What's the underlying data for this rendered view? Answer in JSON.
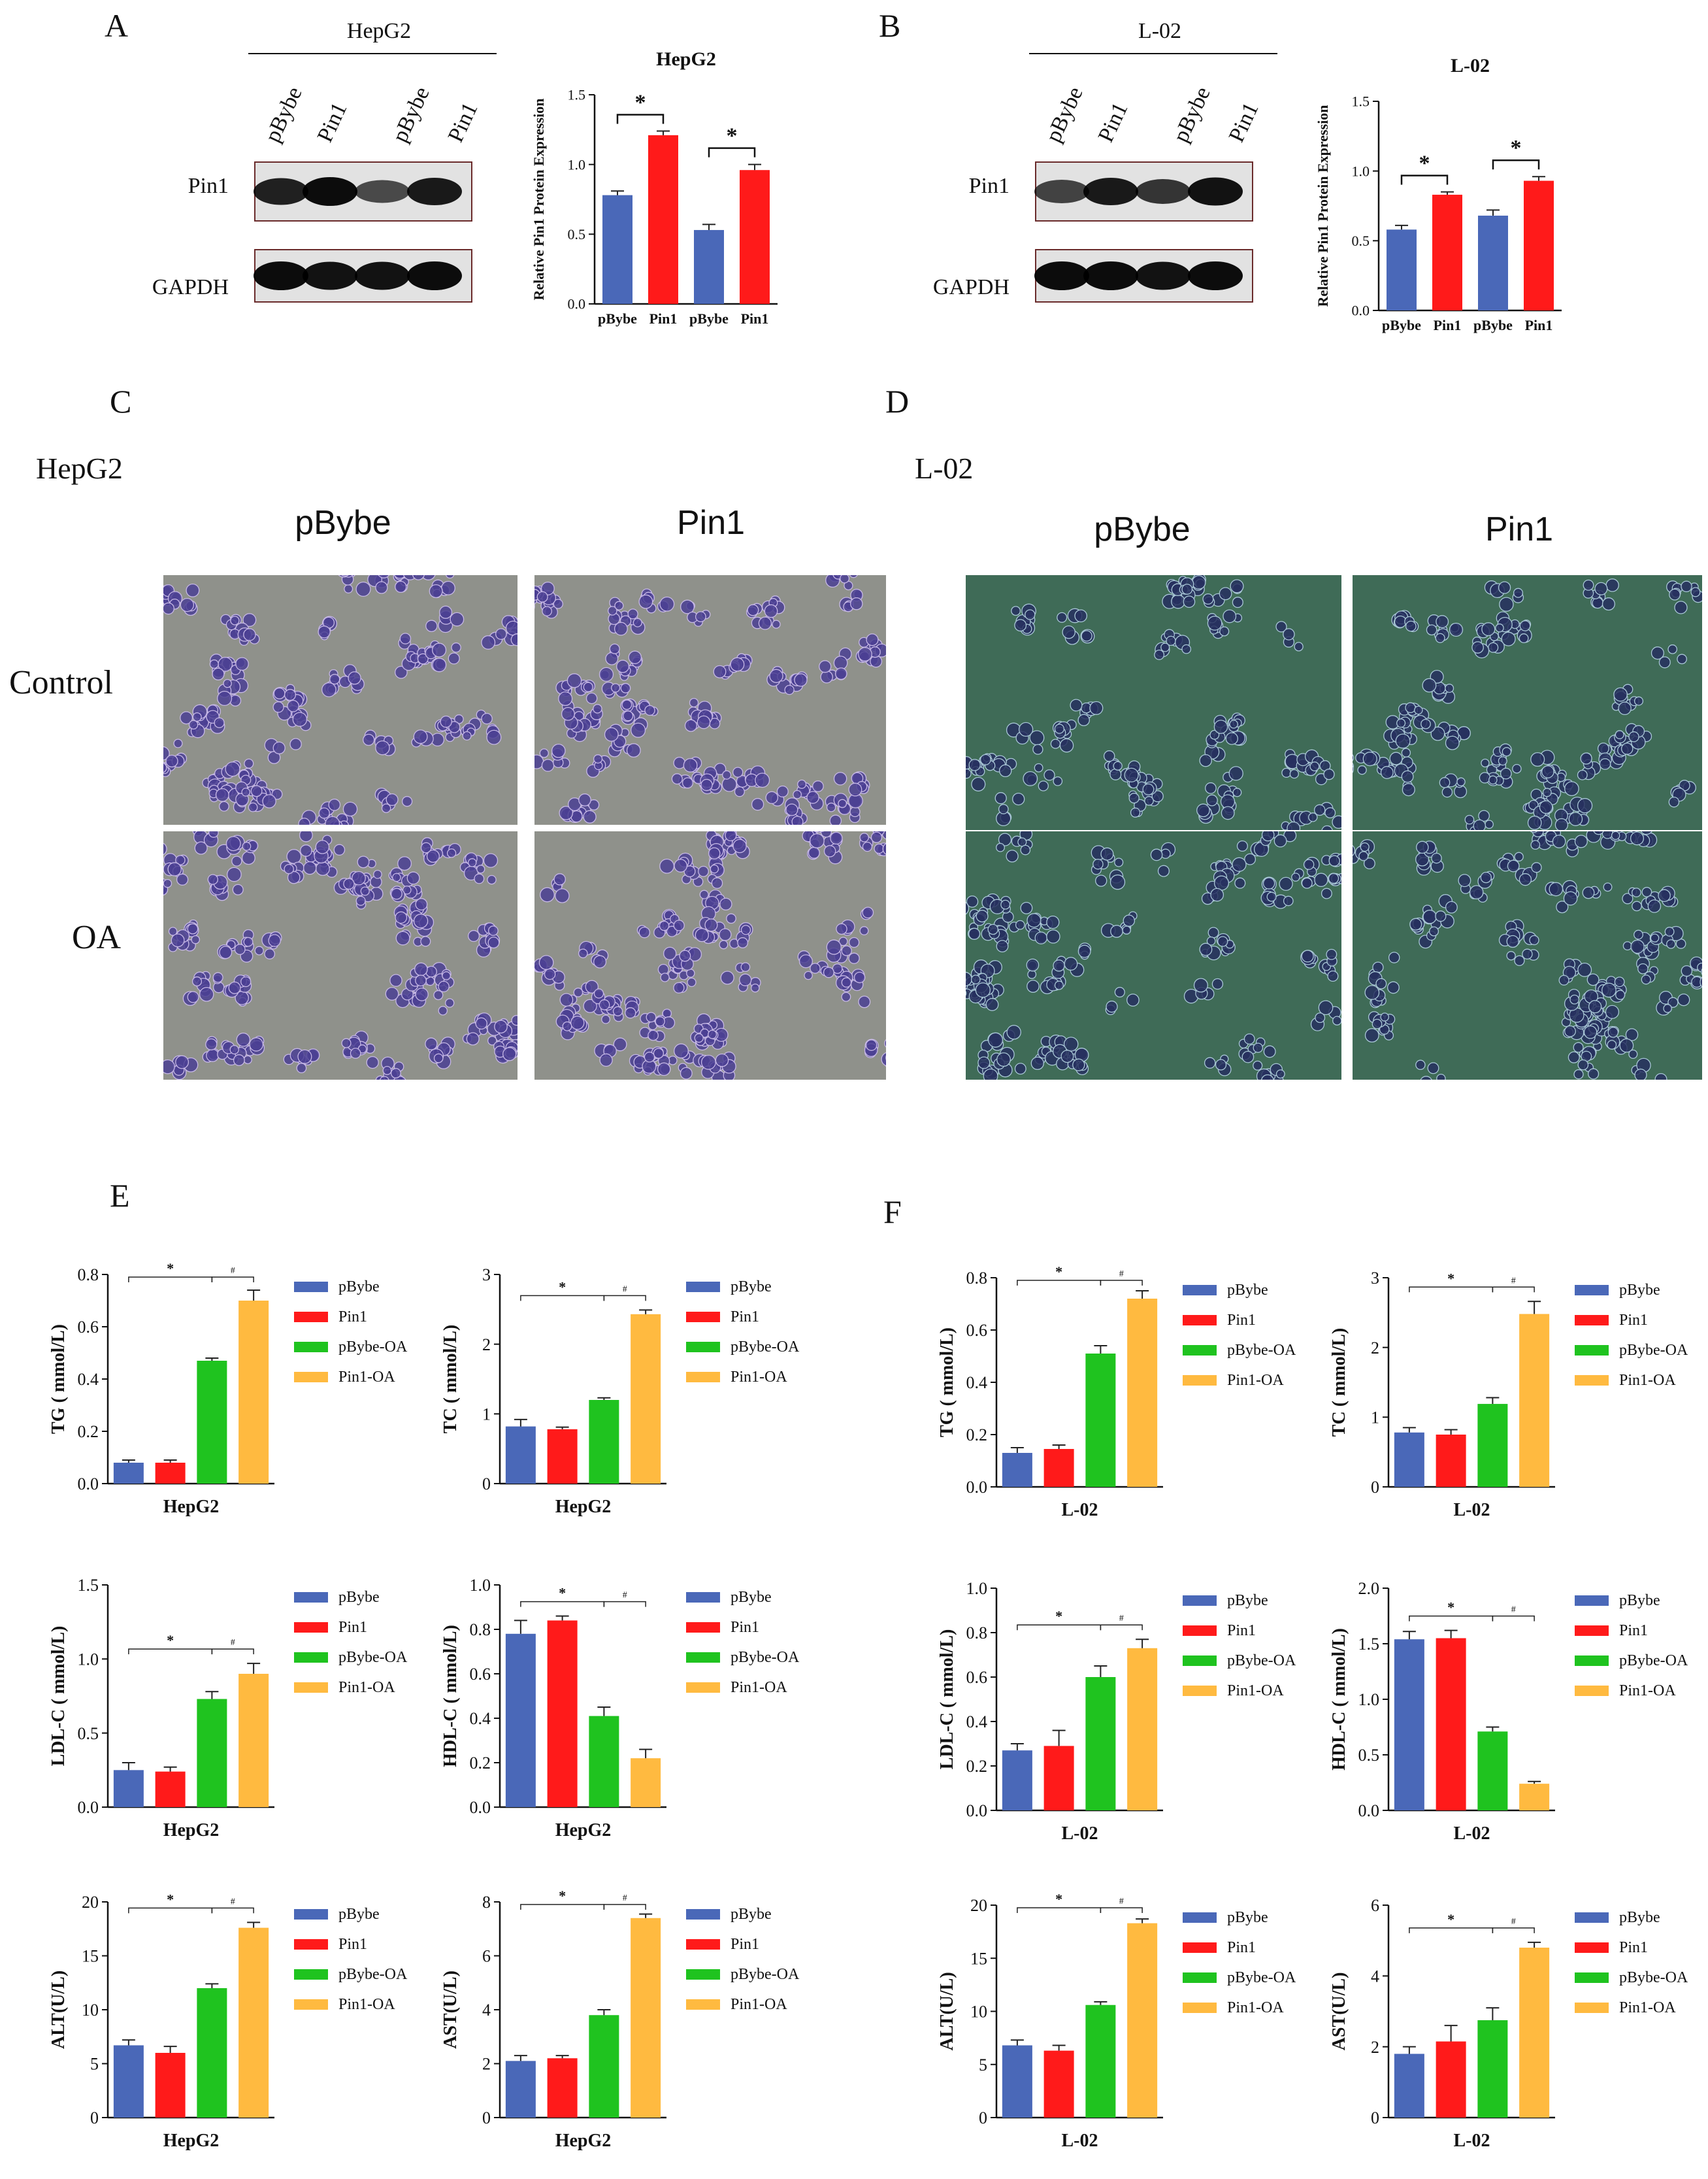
{
  "panels": {
    "A": "A",
    "B": "B",
    "C": "C",
    "D": "D",
    "E": "E",
    "F": "F"
  },
  "colors": {
    "pBybe": "#4a68b8",
    "Pin1": "#ff1a1a",
    "pBybe-OA": "#1fc31f",
    "Pin1-OA": "#ffba40",
    "hepg2_bg": "#8f918b",
    "l02_bg": "#3f6b57"
  },
  "blots": [
    {
      "cell_line": "HepG2",
      "lanes": [
        "pBybe",
        "Pin1",
        "pBybe",
        "Pin1"
      ],
      "rows": [
        "Pin1",
        "GAPDH"
      ],
      "pin1_intensity": [
        0.85,
        1.0,
        0.55,
        0.9
      ],
      "gapdh_intensity": [
        1.0,
        0.95,
        0.95,
        1.0
      ]
    },
    {
      "cell_line": "L-02",
      "lanes": [
        "pBybe",
        "Pin1",
        "pBybe",
        "Pin1"
      ],
      "rows": [
        "Pin1",
        "GAPDH"
      ],
      "pin1_intensity": [
        0.6,
        0.9,
        0.7,
        0.95
      ],
      "gapdh_intensity": [
        1.0,
        1.0,
        0.95,
        1.0
      ]
    }
  ],
  "micrographs": {
    "HepG2": {
      "title": "HepG2",
      "cols": [
        "pBybe",
        "Pin1"
      ],
      "rows": [
        "Control",
        "OA"
      ]
    },
    "L-02": {
      "title": "L-02",
      "cols": [
        "pBybe",
        "Pin1"
      ]
    }
  },
  "legend": [
    "pBybe",
    "Pin1",
    "pBybe-OA",
    "Pin1-OA"
  ],
  "chart_data": [
    {
      "id": "A-bar",
      "type": "bar",
      "title": "HepG2",
      "ylabel": "Relative Pin1 Protein Expression",
      "xlabel": "",
      "categories": [
        "pBybe",
        "Pin1",
        "pBybe",
        "Pin1"
      ],
      "values": [
        0.78,
        1.21,
        0.53,
        0.96
      ],
      "errors": [
        0.03,
        0.03,
        0.04,
        0.04
      ],
      "colors": [
        "#4a68b8",
        "#ff1a1a",
        "#4a68b8",
        "#ff1a1a"
      ],
      "ylim": [
        0,
        1.5
      ],
      "ticks": [
        "0.0",
        "0.5",
        "1.0",
        "1.5"
      ],
      "sig": [
        {
          "from": 0,
          "to": 1,
          "mark": "*"
        },
        {
          "from": 2,
          "to": 3,
          "mark": "*"
        }
      ]
    },
    {
      "id": "B-bar",
      "type": "bar",
      "title": "L-02",
      "ylabel": "Relative Pin1 Protein Expression",
      "xlabel": "",
      "categories": [
        "pBybe",
        "Pin1",
        "pBybe",
        "Pin1"
      ],
      "values": [
        0.58,
        0.83,
        0.68,
        0.93
      ],
      "errors": [
        0.03,
        0.02,
        0.04,
        0.03
      ],
      "colors": [
        "#4a68b8",
        "#ff1a1a",
        "#4a68b8",
        "#ff1a1a"
      ],
      "ylim": [
        0,
        1.5
      ],
      "ticks": [
        "0.0",
        "0.5",
        "1.0",
        "1.5"
      ],
      "sig": [
        {
          "from": 0,
          "to": 1,
          "mark": "*"
        },
        {
          "from": 2,
          "to": 3,
          "mark": "*"
        }
      ]
    },
    {
      "id": "E-TG",
      "type": "bar",
      "title": "",
      "xlabel": "HepG2",
      "ylabel": "TG ( mmol/L)",
      "categories": [
        "pBybe",
        "Pin1",
        "pBybe-OA",
        "Pin1-OA"
      ],
      "values": [
        0.08,
        0.08,
        0.47,
        0.7
      ],
      "errors": [
        0.01,
        0.01,
        0.01,
        0.04
      ],
      "ylim": [
        0,
        0.8
      ],
      "ticks": [
        "0.0",
        "0.2",
        "0.4",
        "0.6",
        "0.8"
      ]
    },
    {
      "id": "E-TC",
      "type": "bar",
      "title": "",
      "xlabel": "HepG2",
      "ylabel": "TC ( mmol/L)",
      "categories": [
        "pBybe",
        "Pin1",
        "pBybe-OA",
        "Pin1-OA"
      ],
      "values": [
        0.82,
        0.78,
        1.2,
        2.43
      ],
      "errors": [
        0.1,
        0.03,
        0.03,
        0.06
      ],
      "ylim": [
        0,
        3
      ],
      "ticks": [
        "0",
        "1",
        "2",
        "3"
      ]
    },
    {
      "id": "E-LDL",
      "type": "bar",
      "title": "",
      "xlabel": "HepG2",
      "ylabel": "LDL-C ( mmol/L)",
      "categories": [
        "pBybe",
        "Pin1",
        "pBybe-OA",
        "Pin1-OA"
      ],
      "values": [
        0.25,
        0.24,
        0.73,
        0.9
      ],
      "errors": [
        0.05,
        0.03,
        0.05,
        0.07
      ],
      "ylim": [
        0,
        1.5
      ],
      "ticks": [
        "0.0",
        "0.5",
        "1.0",
        "1.5"
      ]
    },
    {
      "id": "E-HDL",
      "type": "bar",
      "title": "",
      "xlabel": "HepG2",
      "ylabel": "HDL-C ( mmol/L)",
      "categories": [
        "pBybe",
        "Pin1",
        "pBybe-OA",
        "Pin1-OA"
      ],
      "values": [
        0.78,
        0.84,
        0.41,
        0.22
      ],
      "errors": [
        0.06,
        0.02,
        0.04,
        0.04
      ],
      "ylim": [
        0,
        1.0
      ],
      "ticks": [
        "0.0",
        "0.2",
        "0.4",
        "0.6",
        "0.8",
        "1.0"
      ]
    },
    {
      "id": "E-ALT",
      "type": "bar",
      "title": "",
      "xlabel": "HepG2",
      "ylabel": "ALT(U/L)",
      "categories": [
        "pBybe",
        "Pin1",
        "pBybe-OA",
        "Pin1-OA"
      ],
      "values": [
        6.7,
        6.0,
        12.0,
        17.6
      ],
      "errors": [
        0.5,
        0.6,
        0.4,
        0.5
      ],
      "ylim": [
        0,
        20
      ],
      "ticks": [
        "0",
        "5",
        "10",
        "15",
        "20"
      ]
    },
    {
      "id": "E-AST",
      "type": "bar",
      "title": "",
      "xlabel": "HepG2",
      "ylabel": "AST(U/L)",
      "categories": [
        "pBybe",
        "Pin1",
        "pBybe-OA",
        "Pin1-OA"
      ],
      "values": [
        2.1,
        2.2,
        3.8,
        7.4
      ],
      "errors": [
        0.2,
        0.1,
        0.2,
        0.15
      ],
      "ylim": [
        0,
        8
      ],
      "ticks": [
        "0",
        "2",
        "4",
        "6",
        "8"
      ]
    },
    {
      "id": "F-TG",
      "type": "bar",
      "title": "",
      "xlabel": "L-02",
      "ylabel": "TG ( mmol/L)",
      "categories": [
        "pBybe",
        "Pin1",
        "pBybe-OA",
        "Pin1-OA"
      ],
      "values": [
        0.13,
        0.145,
        0.51,
        0.72
      ],
      "errors": [
        0.02,
        0.015,
        0.03,
        0.03
      ],
      "ylim": [
        0,
        0.8
      ],
      "ticks": [
        "0.0",
        "0.2",
        "0.4",
        "0.6",
        "0.8"
      ]
    },
    {
      "id": "F-TC",
      "type": "bar",
      "title": "",
      "xlabel": "L-02",
      "ylabel": "TC ( mmol/L)",
      "categories": [
        "pBybe",
        "Pin1",
        "pBybe-OA",
        "Pin1-OA"
      ],
      "values": [
        0.78,
        0.75,
        1.19,
        2.48
      ],
      "errors": [
        0.07,
        0.07,
        0.09,
        0.18
      ],
      "ylim": [
        0,
        3
      ],
      "ticks": [
        "0",
        "1",
        "2",
        "3"
      ]
    },
    {
      "id": "F-LDL",
      "type": "bar",
      "title": "",
      "xlabel": "L-02",
      "ylabel": "LDL-C ( mmol/L)",
      "categories": [
        "pBybe",
        "Pin1",
        "pBybe-OA",
        "Pin1-OA"
      ],
      "values": [
        0.27,
        0.29,
        0.6,
        0.73
      ],
      "errors": [
        0.03,
        0.07,
        0.05,
        0.04
      ],
      "ylim": [
        0,
        1.0
      ],
      "ticks": [
        "0.0",
        "0.2",
        "0.4",
        "0.6",
        "0.8",
        "1.0"
      ]
    },
    {
      "id": "F-HDL",
      "type": "bar",
      "title": "",
      "xlabel": "L-02",
      "ylabel": "HDL-C ( mmol/L)",
      "categories": [
        "pBybe",
        "Pin1",
        "pBybe-OA",
        "Pin1-OA"
      ],
      "values": [
        1.54,
        1.55,
        0.71,
        0.24
      ],
      "errors": [
        0.07,
        0.07,
        0.04,
        0.02
      ],
      "ylim": [
        0,
        2.0
      ],
      "ticks": [
        "0.0",
        "0.5",
        "1.0",
        "1.5",
        "2.0"
      ]
    },
    {
      "id": "F-ALT",
      "type": "bar",
      "title": "",
      "xlabel": "L-02",
      "ylabel": "ALT(U/L)",
      "categories": [
        "pBybe",
        "Pin1",
        "pBybe-OA",
        "Pin1-OA"
      ],
      "values": [
        6.8,
        6.3,
        10.6,
        18.3
      ],
      "errors": [
        0.5,
        0.5,
        0.3,
        0.4
      ],
      "ylim": [
        0,
        20
      ],
      "ticks": [
        "0",
        "5",
        "10",
        "15",
        "20"
      ]
    },
    {
      "id": "F-AST",
      "type": "bar",
      "title": "",
      "xlabel": "L-02",
      "ylabel": "AST(U/L)",
      "categories": [
        "pBybe",
        "Pin1",
        "pBybe-OA",
        "Pin1-OA"
      ],
      "values": [
        1.8,
        2.15,
        2.75,
        4.8
      ],
      "errors": [
        0.2,
        0.45,
        0.35,
        0.15
      ],
      "ylim": [
        0,
        6
      ],
      "ticks": [
        "0",
        "2",
        "4",
        "6"
      ]
    }
  ]
}
